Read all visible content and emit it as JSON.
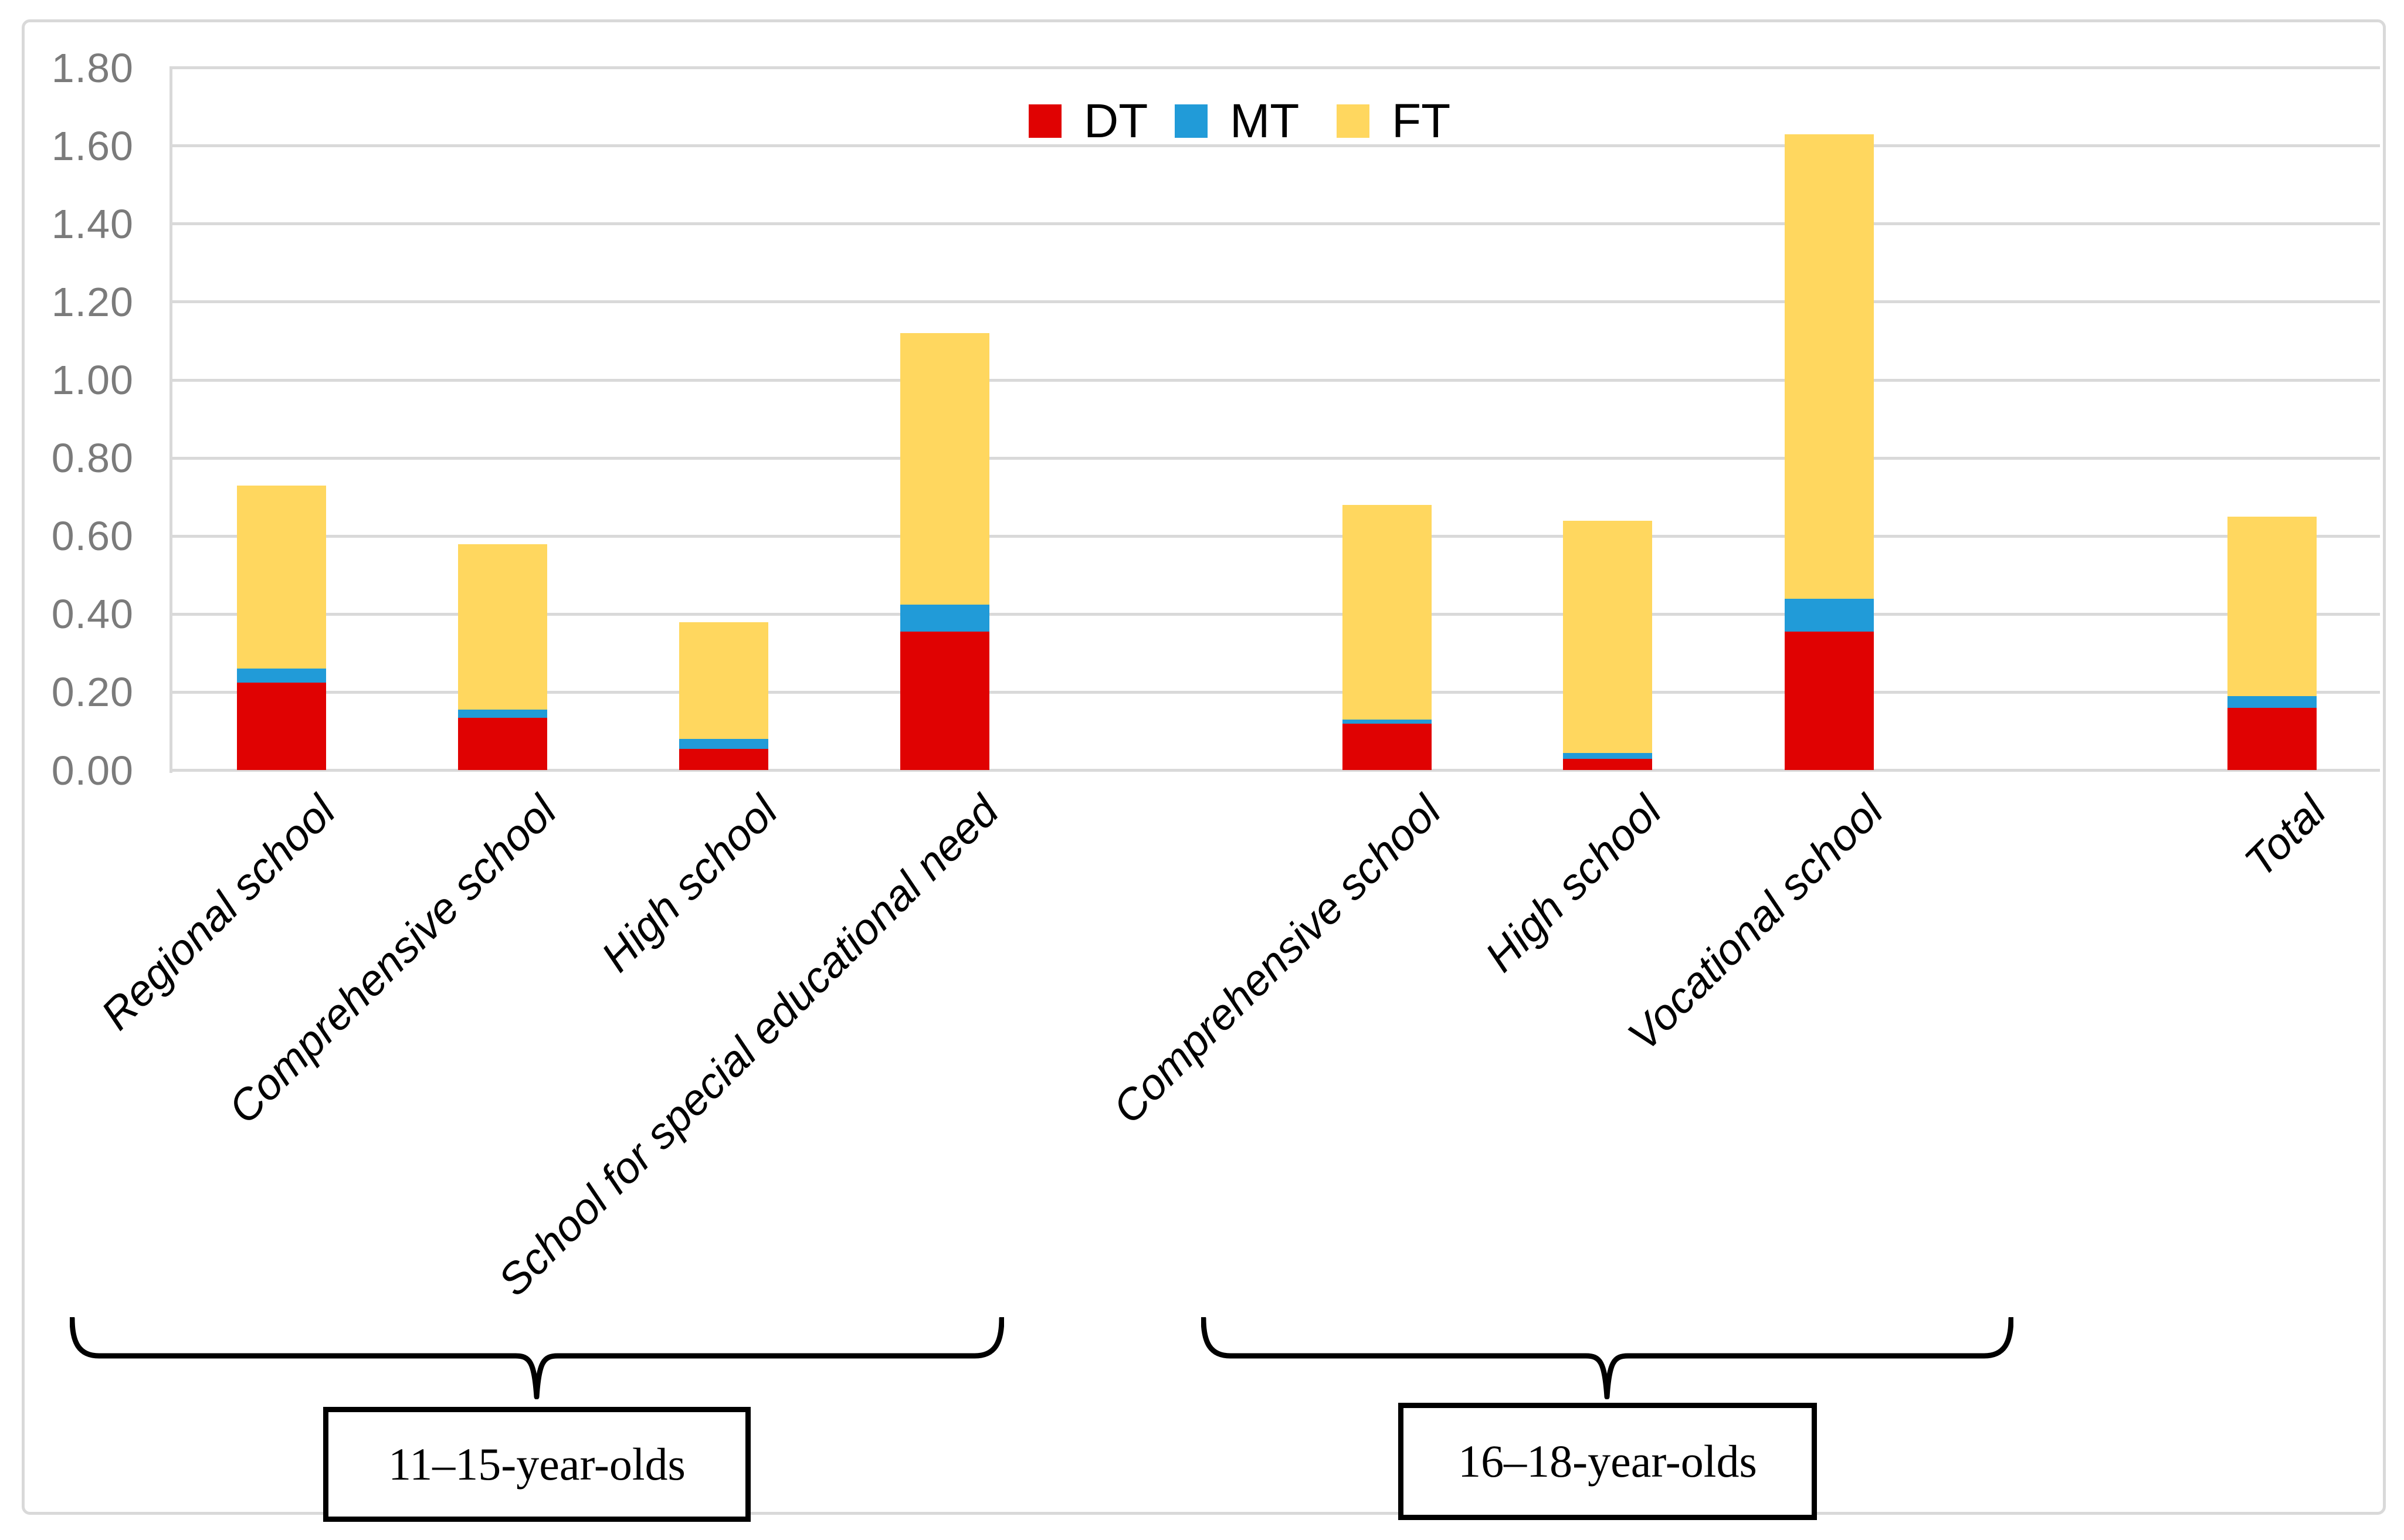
{
  "chart_data": {
    "type": "bar",
    "stacked": true,
    "title": "",
    "xlabel": "",
    "ylabel": "",
    "categories": [
      "Regional school",
      "Comprehensive school",
      "High school",
      "School for special educational need",
      "Comprehensive school",
      "High school",
      "Vocational school",
      "Total"
    ],
    "series": [
      {
        "name": "DT",
        "color": "#e00202",
        "values": [
          0.225,
          0.135,
          0.055,
          0.355,
          0.12,
          0.03,
          0.355,
          0.16
        ]
      },
      {
        "name": "MT",
        "color": "#219bd8",
        "values": [
          0.035,
          0.02,
          0.025,
          0.07,
          0.01,
          0.015,
          0.085,
          0.03
        ]
      },
      {
        "name": "FT",
        "color": "#ffd75f",
        "values": [
          0.47,
          0.425,
          0.3,
          0.695,
          0.55,
          0.595,
          1.19,
          0.46
        ]
      }
    ],
    "stack_totals": [
      0.73,
      0.58,
      0.38,
      1.12,
      0.68,
      0.64,
      1.63,
      0.65
    ],
    "ylim": [
      0,
      1.8
    ],
    "ytick_labels": [
      "0.00",
      "0.20",
      "0.40",
      "0.60",
      "0.80",
      "1.00",
      "1.20",
      "1.40",
      "1.60",
      "1.80"
    ],
    "grid": true,
    "legend_position": "top-center",
    "legend_entries": [
      "DT",
      "MT",
      "FT"
    ],
    "groups": [
      {
        "label": "11–15-year-olds",
        "from_category": "Regional school",
        "to_category": "School for special educational need"
      },
      {
        "label": "16–18-year-olds",
        "from_category": "Comprehensive school",
        "to_category": "Vocational school"
      }
    ]
  },
  "colors": {
    "dt": "#e00202",
    "mt": "#219bd8",
    "ft": "#ffd75f",
    "gridline": "#d9d9d9",
    "tick_text": "#7b7b7b",
    "frame_border": "#d9d9d9"
  }
}
